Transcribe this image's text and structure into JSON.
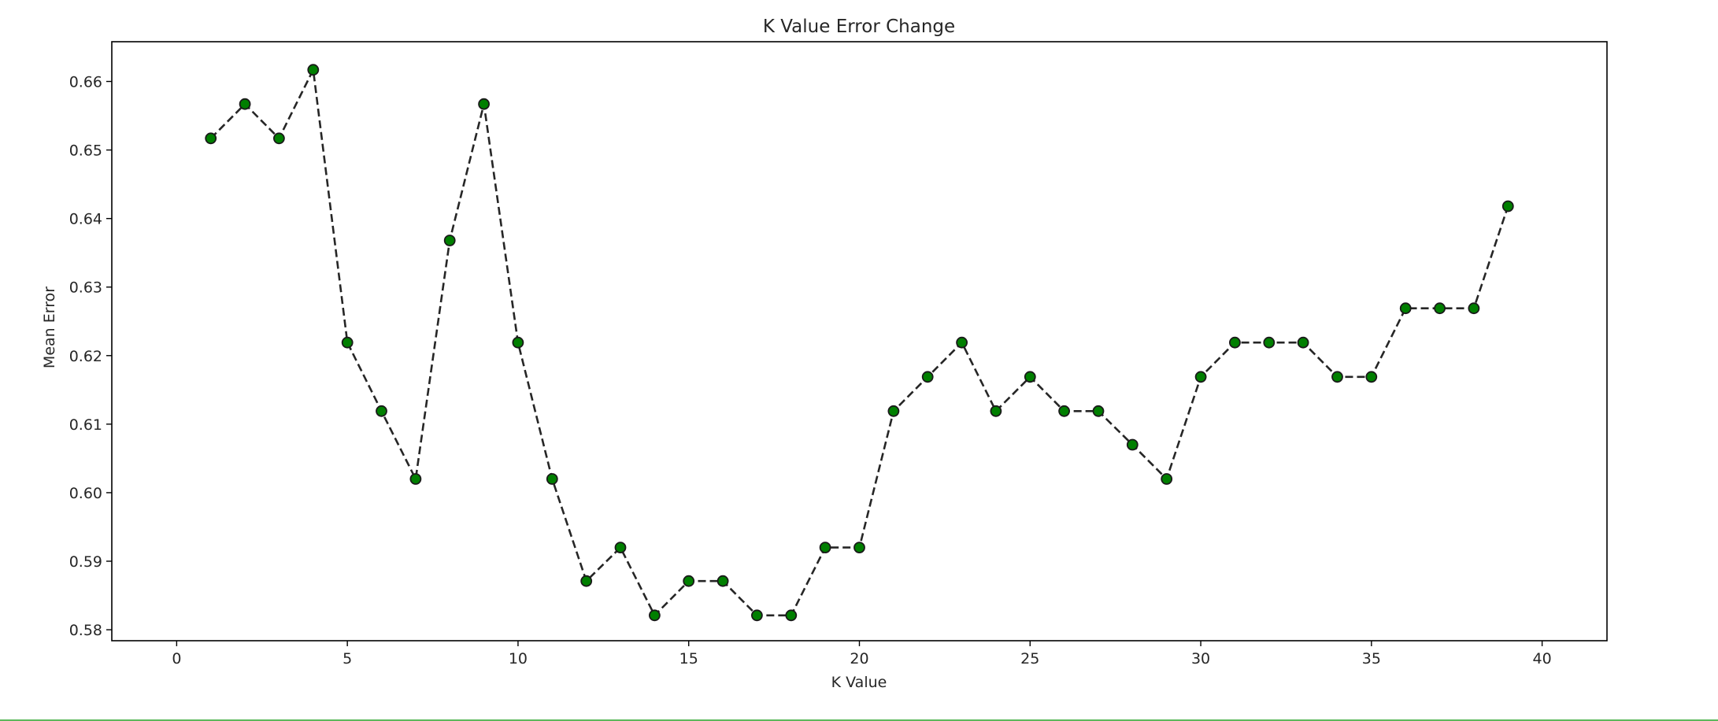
{
  "chart_data": {
    "type": "line",
    "title": "K Value Error Change",
    "xlabel": "K Value",
    "ylabel": "Mean Error",
    "xlim": [
      -1.9,
      41.9
    ],
    "ylim": [
      0.5784,
      0.6658
    ],
    "xticks": [
      0,
      5,
      10,
      15,
      20,
      25,
      30,
      35,
      40
    ],
    "yticks": [
      0.58,
      0.59,
      0.6,
      0.61,
      0.62,
      0.63,
      0.64,
      0.65,
      0.66
    ],
    "ytick_labels": [
      "0.58",
      "0.59",
      "0.60",
      "0.61",
      "0.62",
      "0.63",
      "0.64",
      "0.65",
      "0.66"
    ],
    "grid": false,
    "line_style": "dashed",
    "line_color": "#262626",
    "marker_face_color": "#007f00",
    "marker_edge_color": "#1a1a1a",
    "series": [
      {
        "x": [
          1,
          2,
          3,
          4,
          5,
          6,
          7,
          8,
          9,
          10,
          11,
          12,
          13,
          14,
          15,
          16,
          17,
          18,
          19,
          20,
          21,
          22,
          23,
          24,
          25,
          26,
          27,
          28,
          29,
          30,
          31,
          32,
          33,
          34,
          35,
          36,
          37,
          38,
          39
        ],
        "y": [
          0.6517,
          0.6567,
          0.6517,
          0.6617,
          0.6219,
          0.6119,
          0.602,
          0.6368,
          0.6567,
          0.6219,
          0.602,
          0.5871,
          0.592,
          0.5821,
          0.5871,
          0.5871,
          0.5821,
          0.5821,
          0.592,
          0.592,
          0.6119,
          0.6169,
          0.6219,
          0.6119,
          0.6169,
          0.6119,
          0.6119,
          0.607,
          0.602,
          0.6169,
          0.6219,
          0.6219,
          0.6219,
          0.6169,
          0.6169,
          0.6269,
          0.6269,
          0.6269,
          0.6418
        ]
      }
    ]
  }
}
